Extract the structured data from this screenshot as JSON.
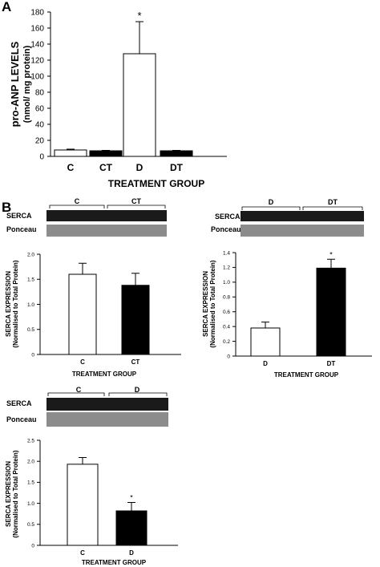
{
  "panel_labels": {
    "a": "A",
    "b": "B"
  },
  "blots": {
    "serca_label": "SERCA",
    "ponceau_label": "Ponceau",
    "groups": [
      {
        "left": "C",
        "right": "CT"
      },
      {
        "left": "D",
        "right": "DT"
      },
      {
        "left": "C",
        "right": "D"
      }
    ]
  },
  "chart_data": [
    {
      "type": "bar",
      "categories": [
        "C",
        "CT",
        "D",
        "DT"
      ],
      "values": [
        8,
        7,
        128,
        7
      ],
      "errors": [
        1,
        0.5,
        40,
        0.5
      ],
      "fills": [
        "white",
        "black",
        "white",
        "black"
      ],
      "significance": [
        "",
        "",
        "*",
        ""
      ],
      "ylabel_line1": "pro-ANP LEVELS",
      "ylabel_line2": "(nmol/ mg protein)",
      "xlabel": "TREATMENT GROUP",
      "ylim": [
        0,
        180
      ],
      "yticks": [
        0,
        20,
        40,
        60,
        80,
        100,
        120,
        140,
        160,
        180
      ]
    },
    {
      "type": "bar",
      "categories": [
        "C",
        "CT"
      ],
      "values": [
        1.6,
        1.38
      ],
      "errors": [
        0.22,
        0.24
      ],
      "fills": [
        "white",
        "black"
      ],
      "significance": [
        "",
        ""
      ],
      "ylabel_line1": "SERCA EXPRESSION",
      "ylabel_line2": "(Normalised to Total Protein)",
      "xlabel": "TREATMENT GROUP",
      "ylim": [
        0,
        2.0
      ],
      "yticks": [
        "0",
        "0.5",
        "1.0",
        "1.5",
        "2.0"
      ]
    },
    {
      "type": "bar",
      "categories": [
        "D",
        "DT"
      ],
      "values": [
        0.38,
        1.19
      ],
      "errors": [
        0.08,
        0.12
      ],
      "fills": [
        "white",
        "black"
      ],
      "significance": [
        "",
        "*"
      ],
      "ylabel_line1": "SERCA EXPRESSION",
      "ylabel_line2": "(Normalised to Total Protein)",
      "xlabel": "TREATMENT GROUP",
      "ylim": [
        0,
        1.4
      ],
      "yticks": [
        "0",
        "0.2",
        "0.4",
        "0.6",
        "0.8",
        "1.0",
        "1.2",
        "1.4"
      ]
    },
    {
      "type": "bar",
      "categories": [
        "C",
        "D"
      ],
      "values": [
        1.93,
        0.82
      ],
      "errors": [
        0.16,
        0.2
      ],
      "fills": [
        "white",
        "black"
      ],
      "significance": [
        "",
        "*"
      ],
      "ylabel_line1": "SERCA EXPRESSION",
      "ylabel_line2": "(Normalised to Total Protein)",
      "xlabel": "TREATMENT GROUP",
      "ylim": [
        0,
        2.5
      ],
      "yticks": [
        "0",
        "0.5",
        "1.0",
        "1.5",
        "2.0",
        "2.5"
      ]
    }
  ]
}
